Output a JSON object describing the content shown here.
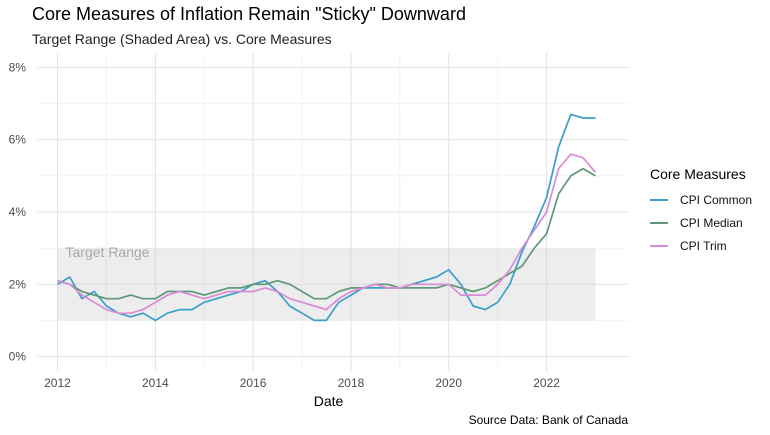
{
  "title": "Core Measures of Inflation Remain \"Sticky\" Downward",
  "subtitle": "Target Range (Shaded Area) vs. Core Measures",
  "caption": "Source Data: Bank of Canada",
  "legend": {
    "title": "Core Measures",
    "placement": "right",
    "items": [
      {
        "label": "CPI Common",
        "color": "#3a9fc9"
      },
      {
        "label": "CPI Median",
        "color": "#5e9878"
      },
      {
        "label": "CPI Trim",
        "color": "#d98bd6"
      }
    ]
  },
  "chart_data": {
    "type": "line",
    "xlabel": "Date",
    "ylabel": "",
    "xlim": [
      "2011-08-01",
      "2023-09-01"
    ],
    "ylim": [
      -0.4,
      8.4
    ],
    "x_ticks": [
      {
        "value": "2012-01-01",
        "label": "2012"
      },
      {
        "value": "2014-01-01",
        "label": "2014"
      },
      {
        "value": "2016-01-01",
        "label": "2016"
      },
      {
        "value": "2018-01-01",
        "label": "2018"
      },
      {
        "value": "2020-01-01",
        "label": "2020"
      },
      {
        "value": "2022-01-01",
        "label": "2022"
      }
    ],
    "y_ticks": [
      {
        "value": 0,
        "label": "0%"
      },
      {
        "value": 2,
        "label": "2%"
      },
      {
        "value": 4,
        "label": "4%"
      },
      {
        "value": 6,
        "label": "6%"
      },
      {
        "value": 8,
        "label": "8%"
      }
    ],
    "grid": true,
    "target_band": {
      "from": 1,
      "to": 3,
      "x_from": "2012-01-01",
      "x_to": "2023-01-01",
      "label": "Target Range",
      "label_at": {
        "x": "2012-03-01",
        "y": 2.75
      }
    },
    "series": [
      {
        "name": "CPI Common",
        "color": "#3a9fc9",
        "points": [
          [
            "2012-01-01",
            2.0
          ],
          [
            "2012-04-01",
            2.2
          ],
          [
            "2012-07-01",
            1.6
          ],
          [
            "2012-10-01",
            1.8
          ],
          [
            "2013-01-01",
            1.4
          ],
          [
            "2013-04-01",
            1.2
          ],
          [
            "2013-07-01",
            1.1
          ],
          [
            "2013-10-01",
            1.2
          ],
          [
            "2014-01-01",
            1.0
          ],
          [
            "2014-04-01",
            1.2
          ],
          [
            "2014-07-01",
            1.3
          ],
          [
            "2014-10-01",
            1.3
          ],
          [
            "2015-01-01",
            1.5
          ],
          [
            "2015-04-01",
            1.6
          ],
          [
            "2015-07-01",
            1.7
          ],
          [
            "2015-10-01",
            1.8
          ],
          [
            "2016-01-01",
            2.0
          ],
          [
            "2016-04-01",
            2.1
          ],
          [
            "2016-07-01",
            1.8
          ],
          [
            "2016-10-01",
            1.4
          ],
          [
            "2017-01-01",
            1.2
          ],
          [
            "2017-04-01",
            1.0
          ],
          [
            "2017-07-01",
            1.0
          ],
          [
            "2017-10-01",
            1.5
          ],
          [
            "2018-01-01",
            1.7
          ],
          [
            "2018-04-01",
            1.9
          ],
          [
            "2018-07-01",
            1.9
          ],
          [
            "2018-10-01",
            1.9
          ],
          [
            "2019-01-01",
            1.9
          ],
          [
            "2019-04-01",
            2.0
          ],
          [
            "2019-07-01",
            2.1
          ],
          [
            "2019-10-01",
            2.2
          ],
          [
            "2020-01-01",
            2.4
          ],
          [
            "2020-04-01",
            2.0
          ],
          [
            "2020-07-01",
            1.4
          ],
          [
            "2020-10-01",
            1.3
          ],
          [
            "2021-01-01",
            1.5
          ],
          [
            "2021-04-01",
            2.0
          ],
          [
            "2021-07-01",
            2.9
          ],
          [
            "2021-10-01",
            3.6
          ],
          [
            "2022-01-01",
            4.4
          ],
          [
            "2022-04-01",
            5.8
          ],
          [
            "2022-07-01",
            6.7
          ],
          [
            "2022-10-01",
            6.6
          ],
          [
            "2023-01-01",
            6.6
          ]
        ]
      },
      {
        "name": "CPI Median",
        "color": "#5e9878",
        "points": [
          [
            "2012-01-01",
            2.1
          ],
          [
            "2012-04-01",
            2.0
          ],
          [
            "2012-07-01",
            1.8
          ],
          [
            "2012-10-01",
            1.7
          ],
          [
            "2013-01-01",
            1.6
          ],
          [
            "2013-04-01",
            1.6
          ],
          [
            "2013-07-01",
            1.7
          ],
          [
            "2013-10-01",
            1.6
          ],
          [
            "2014-01-01",
            1.6
          ],
          [
            "2014-04-01",
            1.8
          ],
          [
            "2014-07-01",
            1.8
          ],
          [
            "2014-10-01",
            1.8
          ],
          [
            "2015-01-01",
            1.7
          ],
          [
            "2015-04-01",
            1.8
          ],
          [
            "2015-07-01",
            1.9
          ],
          [
            "2015-10-01",
            1.9
          ],
          [
            "2016-01-01",
            2.0
          ],
          [
            "2016-04-01",
            2.0
          ],
          [
            "2016-07-01",
            2.1
          ],
          [
            "2016-10-01",
            2.0
          ],
          [
            "2017-01-01",
            1.8
          ],
          [
            "2017-04-01",
            1.6
          ],
          [
            "2017-07-01",
            1.6
          ],
          [
            "2017-10-01",
            1.8
          ],
          [
            "2018-01-01",
            1.9
          ],
          [
            "2018-04-01",
            1.9
          ],
          [
            "2018-07-01",
            2.0
          ],
          [
            "2018-10-01",
            2.0
          ],
          [
            "2019-01-01",
            1.9
          ],
          [
            "2019-04-01",
            1.9
          ],
          [
            "2019-07-01",
            1.9
          ],
          [
            "2019-10-01",
            1.9
          ],
          [
            "2020-01-01",
            2.0
          ],
          [
            "2020-04-01",
            1.9
          ],
          [
            "2020-07-01",
            1.8
          ],
          [
            "2020-10-01",
            1.9
          ],
          [
            "2021-01-01",
            2.1
          ],
          [
            "2021-04-01",
            2.3
          ],
          [
            "2021-07-01",
            2.5
          ],
          [
            "2021-10-01",
            3.0
          ],
          [
            "2022-01-01",
            3.4
          ],
          [
            "2022-04-01",
            4.5
          ],
          [
            "2022-07-01",
            5.0
          ],
          [
            "2022-10-01",
            5.2
          ],
          [
            "2023-01-01",
            5.0
          ]
        ]
      },
      {
        "name": "CPI Trim",
        "color": "#d98bd6",
        "points": [
          [
            "2012-01-01",
            2.1
          ],
          [
            "2012-04-01",
            2.0
          ],
          [
            "2012-07-01",
            1.7
          ],
          [
            "2012-10-01",
            1.5
          ],
          [
            "2013-01-01",
            1.3
          ],
          [
            "2013-04-01",
            1.2
          ],
          [
            "2013-07-01",
            1.2
          ],
          [
            "2013-10-01",
            1.3
          ],
          [
            "2014-01-01",
            1.5
          ],
          [
            "2014-04-01",
            1.7
          ],
          [
            "2014-07-01",
            1.8
          ],
          [
            "2014-10-01",
            1.7
          ],
          [
            "2015-01-01",
            1.6
          ],
          [
            "2015-04-01",
            1.7
          ],
          [
            "2015-07-01",
            1.8
          ],
          [
            "2015-10-01",
            1.8
          ],
          [
            "2016-01-01",
            1.8
          ],
          [
            "2016-04-01",
            1.9
          ],
          [
            "2016-07-01",
            1.8
          ],
          [
            "2016-10-01",
            1.6
          ],
          [
            "2017-01-01",
            1.5
          ],
          [
            "2017-04-01",
            1.4
          ],
          [
            "2017-07-01",
            1.3
          ],
          [
            "2017-10-01",
            1.6
          ],
          [
            "2018-01-01",
            1.8
          ],
          [
            "2018-04-01",
            1.9
          ],
          [
            "2018-07-01",
            2.0
          ],
          [
            "2018-10-01",
            1.9
          ],
          [
            "2019-01-01",
            1.9
          ],
          [
            "2019-04-01",
            2.0
          ],
          [
            "2019-07-01",
            2.0
          ],
          [
            "2019-10-01",
            2.0
          ],
          [
            "2020-01-01",
            2.0
          ],
          [
            "2020-04-01",
            1.7
          ],
          [
            "2020-07-01",
            1.7
          ],
          [
            "2020-10-01",
            1.7
          ],
          [
            "2021-01-01",
            2.0
          ],
          [
            "2021-04-01",
            2.4
          ],
          [
            "2021-07-01",
            3.0
          ],
          [
            "2021-10-01",
            3.5
          ],
          [
            "2022-01-01",
            4.0
          ],
          [
            "2022-04-01",
            5.2
          ],
          [
            "2022-07-01",
            5.6
          ],
          [
            "2022-10-01",
            5.5
          ],
          [
            "2023-01-01",
            5.1
          ]
        ]
      }
    ]
  }
}
